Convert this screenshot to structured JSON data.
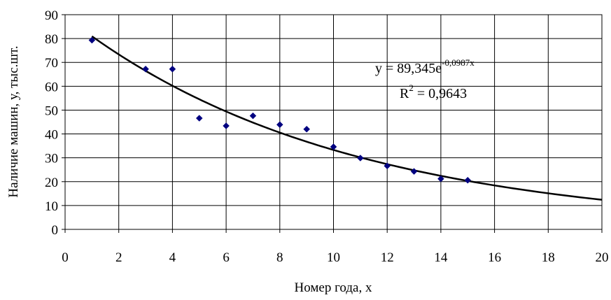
{
  "chart_data": {
    "type": "scatter",
    "title": "",
    "xlabel": "Номер года, х",
    "ylabel": "Наличие машин, у, тыс.шт.",
    "xlim": [
      0,
      20
    ],
    "ylim": [
      0,
      90
    ],
    "xticks": [
      0,
      2,
      4,
      6,
      8,
      10,
      12,
      14,
      16,
      18,
      20
    ],
    "yticks": [
      0,
      10,
      20,
      30,
      40,
      50,
      60,
      70,
      80,
      90
    ],
    "grid": true,
    "legend": "none",
    "series": [
      {
        "kind": "points",
        "marker": "diamond",
        "color": "#000080",
        "x": [
          1,
          3,
          4,
          5,
          6,
          7,
          8,
          9,
          10,
          11,
          12,
          13,
          14,
          15
        ],
        "y": [
          79.3,
          67.2,
          67.2,
          46.6,
          43.4,
          47.6,
          43.9,
          42.0,
          34.6,
          29.9,
          26.6,
          24.3,
          21.2,
          20.6
        ]
      },
      {
        "kind": "trendline",
        "fit": "exponential",
        "color": "#000000",
        "coefficient": 89.345,
        "rate": -0.0987,
        "x_range": [
          1,
          20
        ]
      }
    ],
    "annotations": {
      "equation_prefix": "y = 89,345e",
      "equation_exponent": "-0,0987x",
      "r2_prefix": "R",
      "r2_exponent": "2",
      "r2_value": " = 0,9643"
    }
  }
}
